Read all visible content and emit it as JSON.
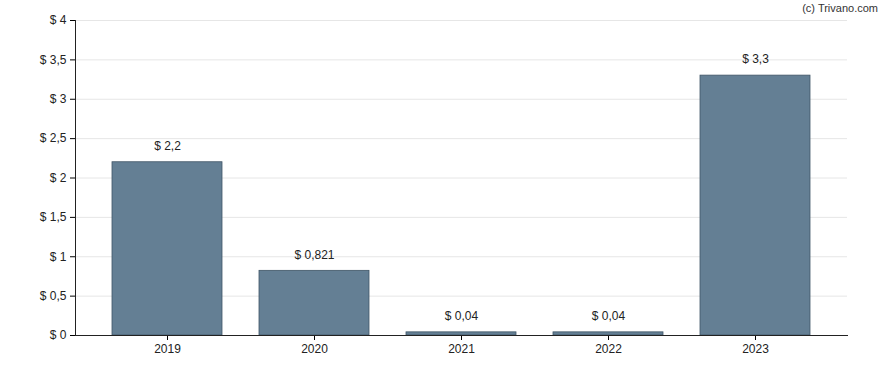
{
  "chart_data": {
    "type": "bar",
    "annotations": [
      "(c) Trivano.com"
    ],
    "categories": [
      "2019",
      "2020",
      "2021",
      "2022",
      "2023"
    ],
    "values": [
      2.2,
      0.821,
      0.04,
      0.04,
      3.3
    ],
    "value_labels": [
      "$ 2,2",
      "$ 0,821",
      "$ 0,04",
      "$ 0,04",
      "$ 3,3"
    ],
    "data_labels": true,
    "color": "#647f94",
    "ylim": [
      0,
      4
    ],
    "yticks": [
      {
        "value": 0,
        "label": "$ 0"
      },
      {
        "value": 0.5,
        "label": "$ 0,5"
      },
      {
        "value": 1,
        "label": "$ 1"
      },
      {
        "value": 1.5,
        "label": "$ 1,5"
      },
      {
        "value": 2,
        "label": "$ 2"
      },
      {
        "value": 2.5,
        "label": "$ 2,5"
      },
      {
        "value": 3,
        "label": "$ 3"
      },
      {
        "value": 3.5,
        "label": "$ 3,5"
      },
      {
        "value": 4,
        "label": "$ 4"
      }
    ],
    "grid": true
  }
}
